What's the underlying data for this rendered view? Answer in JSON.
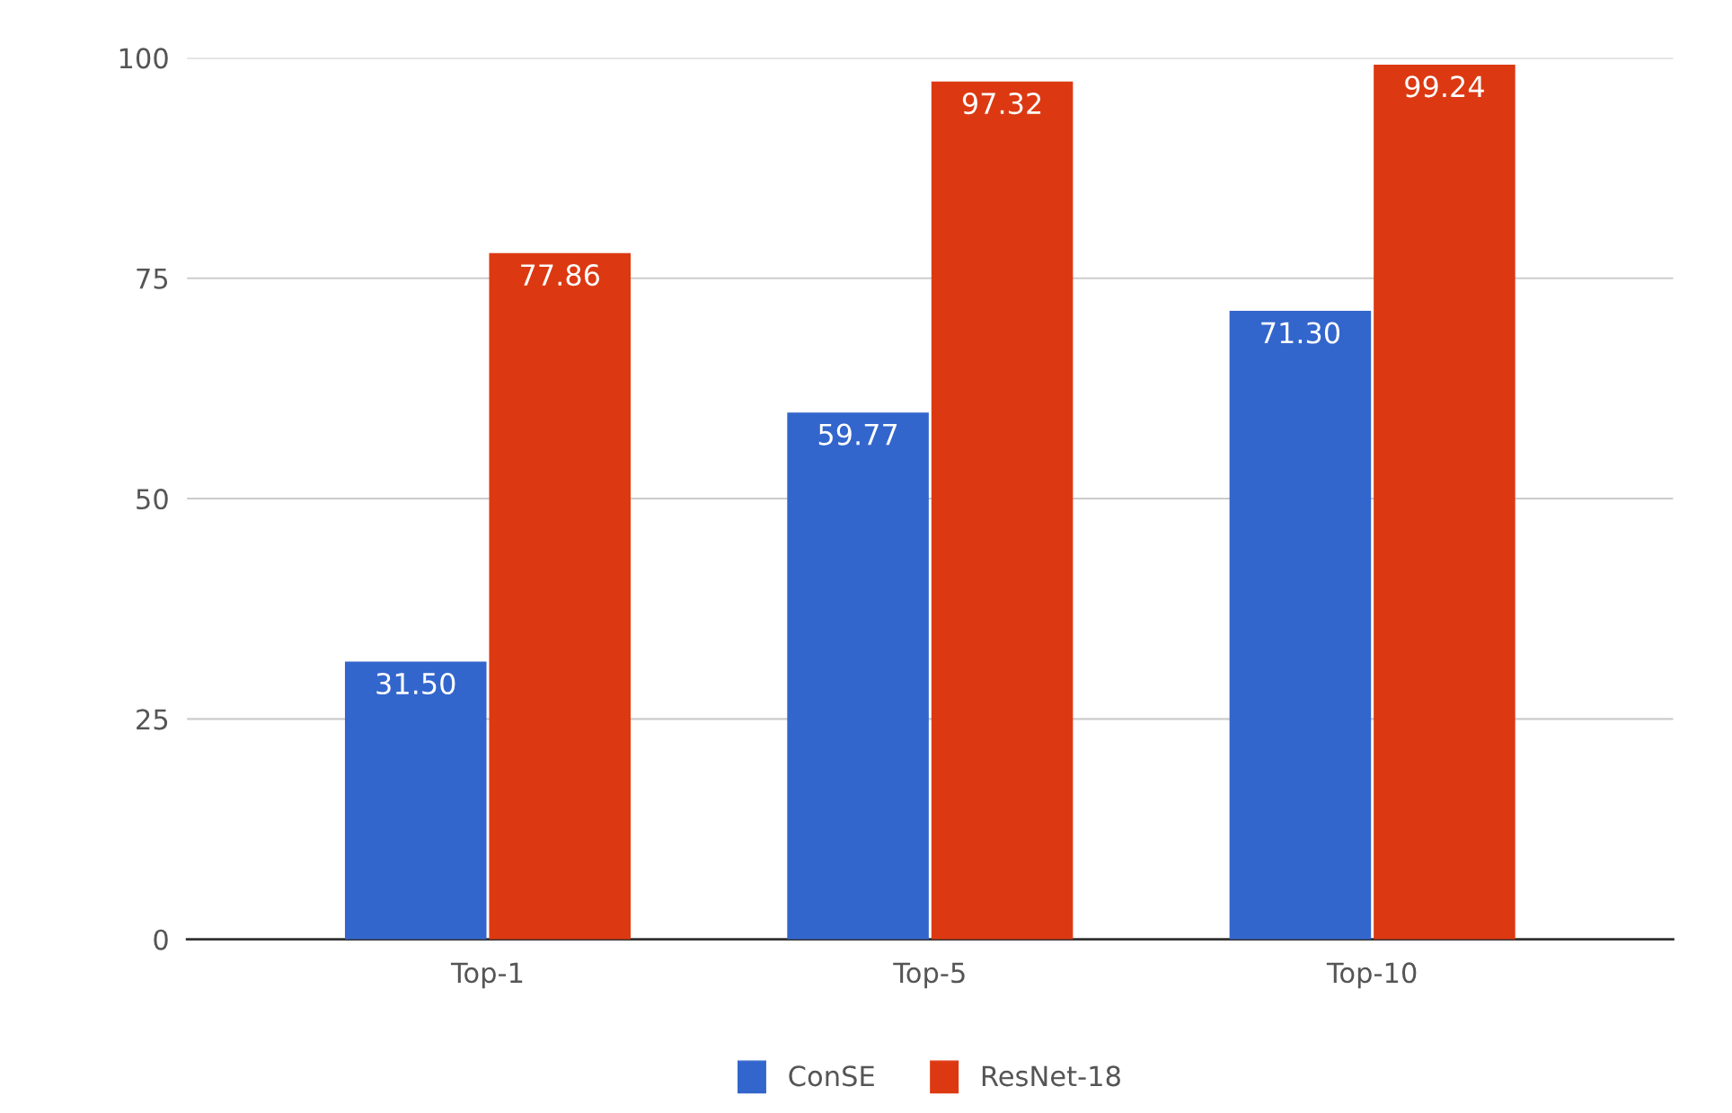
{
  "chart_data": {
    "type": "bar",
    "categories": [
      "Top-1",
      "Top-5",
      "Top-10"
    ],
    "series": [
      {
        "name": "ConSE",
        "color": "#3366cc",
        "values": [
          31.5,
          59.77,
          71.3
        ],
        "value_labels": [
          "31.50",
          "59.77",
          "71.30"
        ]
      },
      {
        "name": "ResNet-18",
        "color": "#dc3912",
        "values": [
          77.86,
          97.32,
          99.24
        ],
        "value_labels": [
          "77.86",
          "97.32",
          "99.24"
        ]
      }
    ],
    "ylim": [
      0,
      100
    ],
    "yticks": [
      0,
      25,
      50,
      75,
      100
    ],
    "grid": "y",
    "legend": "bottom"
  }
}
